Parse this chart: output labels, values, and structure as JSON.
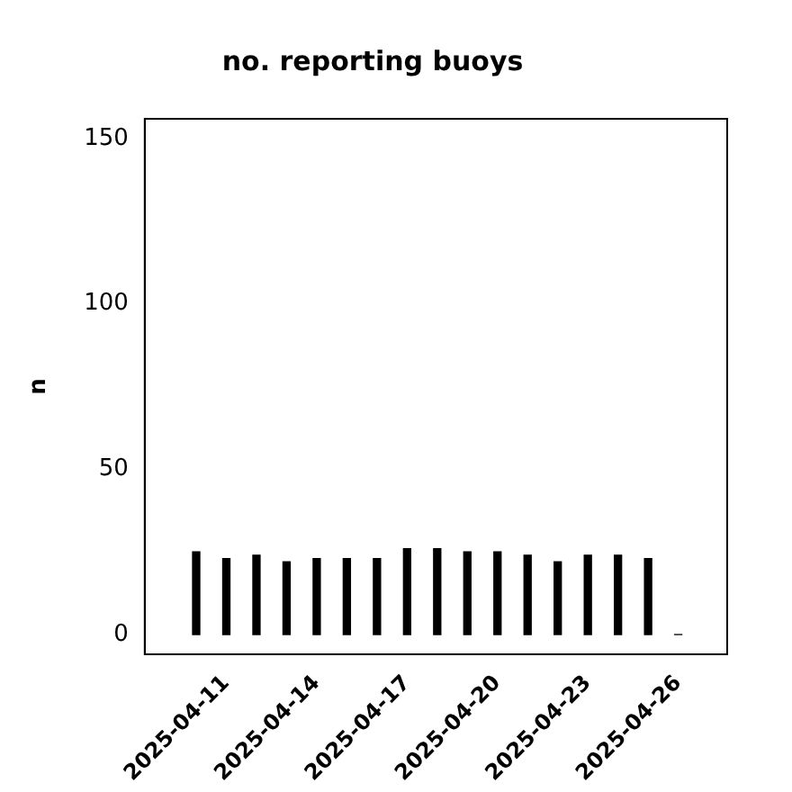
{
  "chart_data": {
    "type": "bar",
    "title": "no. reporting buoys",
    "ylabel": "n",
    "x": [
      "2025-04-10",
      "2025-04-11",
      "2025-04-12",
      "2025-04-13",
      "2025-04-14",
      "2025-04-15",
      "2025-04-16",
      "2025-04-17",
      "2025-04-18",
      "2025-04-19",
      "2025-04-20",
      "2025-04-21",
      "2025-04-22",
      "2025-04-23",
      "2025-04-24",
      "2025-04-25",
      "2025-04-26"
    ],
    "values": [
      25,
      23,
      24,
      22,
      23,
      23,
      23,
      26,
      26,
      25,
      25,
      24,
      22,
      24,
      24,
      23,
      0
    ],
    "color": "#000000",
    "xlim": [
      "2025-04-08T07:00",
      "2025-04-27T15:00"
    ],
    "xticks": [
      "2025-04-11",
      "2025-04-14",
      "2025-04-17",
      "2025-04-20",
      "2025-04-23",
      "2025-04-26"
    ],
    "ylim": [
      -6,
      156
    ],
    "yticks": [
      0,
      50,
      100,
      150
    ],
    "grid": false,
    "legend": false
  }
}
